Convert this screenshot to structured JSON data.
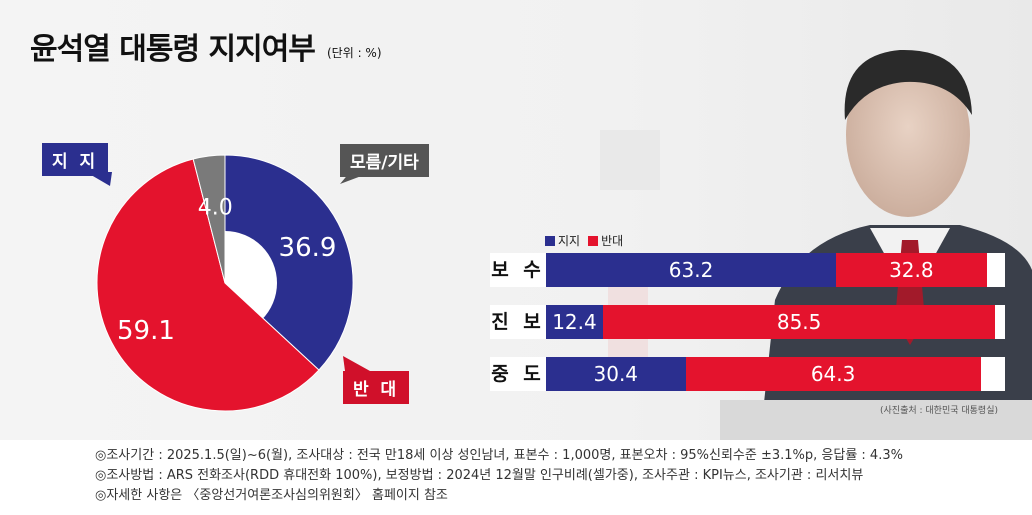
{
  "title": "윤석열 대통령 지지여부",
  "unit": "(단위 : %)",
  "photo_credit": "(사진출처 : 대한민국 대통령실)",
  "colors": {
    "support": "#2b2f8f",
    "against": "#e4132d",
    "other": "#7a7a7a"
  },
  "chart_data": [
    {
      "type": "pie",
      "labels": [
        "지 지",
        "반 대",
        "모름/기타"
      ],
      "values": [
        36.9,
        59.1,
        4.0
      ],
      "colors": [
        "#2b2f8f",
        "#e4132d",
        "#7a7a7a"
      ]
    },
    {
      "type": "bar",
      "stacked": true,
      "orientation": "horizontal",
      "categories": [
        "보 수",
        "진 보",
        "중 도"
      ],
      "series": [
        {
          "name": "지지",
          "values": [
            63.2,
            12.4,
            30.4
          ],
          "color": "#2b2f8f"
        },
        {
          "name": "반대",
          "values": [
            32.8,
            85.5,
            64.3
          ],
          "color": "#e4132d"
        }
      ],
      "legend": "top-left"
    }
  ],
  "notes": [
    "◎조사기간 : 2025.1.5(일)~6(월), 조사대상 : 전국 만18세 이상 성인남녀, 표본수 : 1,000명, 표본오차 : 95%신뢰수준 ±3.1%p, 응답률 : 4.3%",
    "◎조사방법 : ARS 전화조사(RDD 휴대전화 100%), 보정방법 : 2024년 12월말 인구비례(셀가중), 조사주관 : KPI뉴스, 조사기관 : 리서치뷰",
    "◎자세한 사항은 〈중앙선거여론조사심의위원회〉 홈페이지 참조"
  ]
}
